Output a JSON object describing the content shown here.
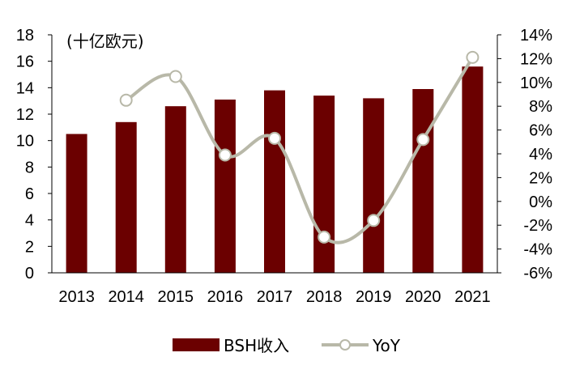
{
  "chart_data": {
    "type": "bar",
    "unit_label": "(十亿欧元)",
    "categories": [
      "2013",
      "2014",
      "2015",
      "2016",
      "2017",
      "2018",
      "2019",
      "2020",
      "2021"
    ],
    "series": [
      {
        "name": "BSH收入",
        "type": "bar",
        "axis": "left",
        "color": "#6b0000",
        "values": [
          10.5,
          11.4,
          12.6,
          13.1,
          13.8,
          13.4,
          13.2,
          13.9,
          15.6
        ]
      },
      {
        "name": "YoY",
        "type": "line",
        "axis": "right",
        "color": "#b8b8a8",
        "marker": "open-circle",
        "smooth": true,
        "values": [
          null,
          8.5,
          10.5,
          3.9,
          5.3,
          -3.0,
          -1.6,
          5.2,
          12.1
        ]
      }
    ],
    "y_left": {
      "min": 0,
      "max": 18,
      "step": 2,
      "ticks": [
        "0",
        "2",
        "4",
        "6",
        "8",
        "10",
        "12",
        "14",
        "16",
        "18"
      ]
    },
    "y_right": {
      "min": -6,
      "max": 14,
      "step": 2,
      "ticks": [
        "-6%",
        "-4%",
        "-2%",
        "0%",
        "2%",
        "4%",
        "6%",
        "8%",
        "10%",
        "12%",
        "14%"
      ]
    },
    "grid": false,
    "legend_position": "bottom"
  }
}
